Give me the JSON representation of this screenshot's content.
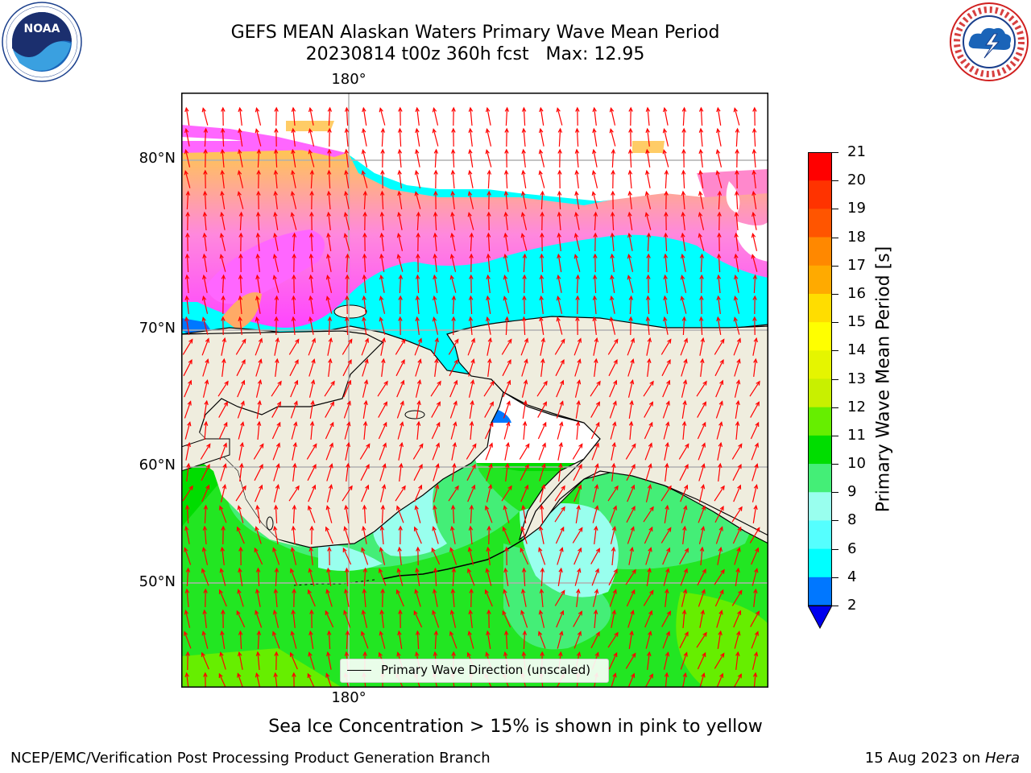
{
  "header": {
    "title_line1": "GEFS MEAN Alaskan Waters Primary Wave Mean Period",
    "title_line2": "20230814 t00z 360h fcst   Max: 12.95"
  },
  "logos": {
    "left": {
      "name": "noaa-logo",
      "text": "NOAA",
      "ring_text": "NATIONAL OCEANIC AND ATMOSPHERIC ADMINISTRATION · U.S. DEPARTMENT OF COMMERCE"
    },
    "right": {
      "name": "national-weather-service-logo",
      "ring_text": "NATIONAL WEATHER SERVICE"
    }
  },
  "map": {
    "lat_labels": [
      "80°N",
      "70°N",
      "60°N",
      "50°N"
    ],
    "lon_label_top": "180°",
    "lon_label_bottom": "180°",
    "legend_label": "Primary Wave Direction (unscaled)",
    "colors": {
      "land": "#efedde",
      "vector": "#ff0000",
      "grid": "#b0b0b0"
    }
  },
  "colorbar": {
    "title": "Primary Wave Mean Period [s]",
    "ticks": [
      "21",
      "20",
      "19",
      "18",
      "17",
      "16",
      "15",
      "14",
      "13",
      "12",
      "11",
      "10",
      "9",
      "8",
      "6",
      "4",
      "2"
    ],
    "colors": [
      "#ff0000",
      "#ff3300",
      "#ff5500",
      "#ff8800",
      "#ffaa00",
      "#ffdd00",
      "#ffff00",
      "#e5f500",
      "#c8f000",
      "#66ee00",
      "#00dd00",
      "#44ee77",
      "#99ffee",
      "#55ffff",
      "#00ffff",
      "#0077ff",
      "#0000ee"
    ]
  },
  "caption": "Sea Ice Concentration > 15% is shown in pink to yellow",
  "footer": {
    "left": "NCEP/EMC/Verification Post Processing Product Generation Branch",
    "right_date": "15 Aug 2023 on ",
    "right_host": "Hera"
  }
}
